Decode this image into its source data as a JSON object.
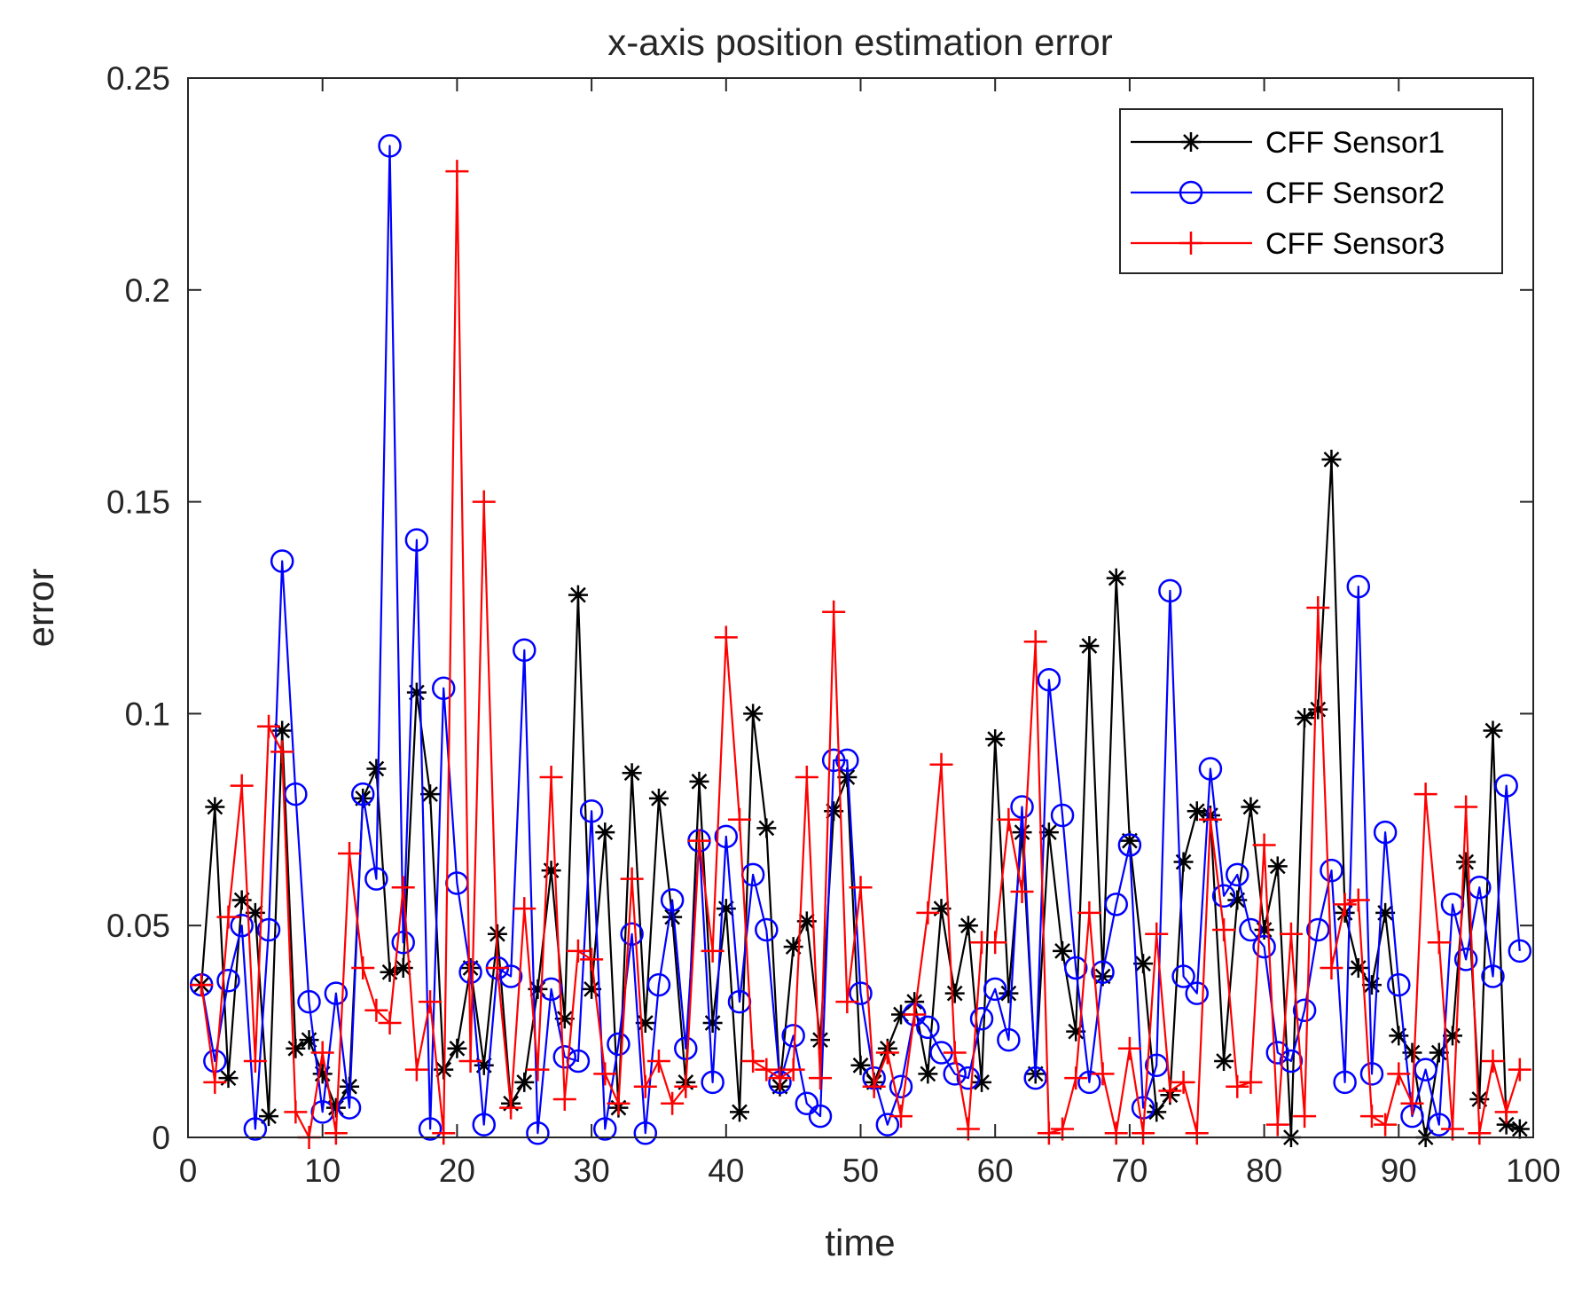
{
  "chart_data": {
    "type": "line",
    "title": "x-axis position estimation error",
    "xlabel": "time",
    "ylabel": "error",
    "xlim": [
      0,
      100
    ],
    "ylim": [
      0,
      0.25
    ],
    "xticks": [
      0,
      10,
      20,
      30,
      40,
      50,
      60,
      70,
      80,
      90,
      100
    ],
    "xtick_labels": [
      "0",
      "10",
      "20",
      "30",
      "40",
      "50",
      "60",
      "70",
      "80",
      "90",
      "100"
    ],
    "yticks": [
      0,
      0.05,
      0.1,
      0.15,
      0.2,
      0.25
    ],
    "ytick_labels": [
      "0",
      "0.05",
      "0.1",
      "0.15",
      "0.2",
      "0.25"
    ],
    "grid": false,
    "legend_position": "top-right",
    "x": [
      1,
      2,
      3,
      4,
      5,
      6,
      7,
      8,
      9,
      10,
      11,
      12,
      13,
      14,
      15,
      16,
      17,
      18,
      19,
      20,
      21,
      22,
      23,
      24,
      25,
      26,
      27,
      28,
      29,
      30,
      31,
      32,
      33,
      34,
      35,
      36,
      37,
      38,
      39,
      40,
      41,
      42,
      43,
      44,
      45,
      46,
      47,
      48,
      49,
      50,
      51,
      52,
      53,
      54,
      55,
      56,
      57,
      58,
      59,
      60,
      61,
      62,
      63,
      64,
      65,
      66,
      67,
      68,
      69,
      70,
      71,
      72,
      73,
      74,
      75,
      76,
      77,
      78,
      79,
      80,
      81,
      82,
      83,
      84,
      85,
      86,
      87,
      88,
      89,
      90,
      91,
      92,
      93,
      94,
      95,
      96,
      97,
      98,
      99
    ],
    "series": [
      {
        "name": "CFF Sensor1",
        "color": "#000000",
        "marker": "asterisk",
        "values": [
          0.036,
          0.078,
          0.014,
          0.056,
          0.053,
          0.005,
          0.096,
          0.021,
          0.023,
          0.015,
          0.007,
          0.012,
          0.08,
          0.087,
          0.039,
          0.04,
          0.105,
          0.081,
          0.016,
          0.021,
          0.04,
          0.017,
          0.048,
          0.008,
          0.013,
          0.035,
          0.063,
          0.028,
          0.128,
          0.035,
          0.072,
          0.007,
          0.086,
          0.027,
          0.08,
          0.052,
          0.013,
          0.084,
          0.027,
          0.054,
          0.006,
          0.1,
          0.073,
          0.012,
          0.045,
          0.051,
          0.023,
          0.077,
          0.085,
          0.017,
          0.013,
          0.021,
          0.029,
          0.032,
          0.015,
          0.054,
          0.034,
          0.05,
          0.013,
          0.094,
          0.034,
          0.072,
          0.015,
          0.072,
          0.044,
          0.025,
          0.116,
          0.038,
          0.132,
          0.07,
          0.041,
          0.006,
          0.01,
          0.065,
          0.077,
          0.076,
          0.018,
          0.056,
          0.078,
          0.049,
          0.064,
          0.0,
          0.099,
          0.101,
          0.16,
          0.053,
          0.04,
          0.036,
          0.053,
          0.024,
          0.02,
          0.0,
          0.02,
          0.024,
          0.065,
          0.009,
          0.096,
          0.003,
          0.002
        ]
      },
      {
        "name": "CFF Sensor2",
        "color": "#0000FF",
        "marker": "circle",
        "values": [
          0.036,
          0.018,
          0.037,
          0.05,
          0.002,
          0.049,
          0.136,
          0.081,
          0.032,
          0.006,
          0.034,
          0.007,
          0.081,
          0.061,
          0.234,
          0.046,
          0.141,
          0.002,
          0.106,
          0.06,
          0.039,
          0.003,
          0.04,
          0.038,
          0.115,
          0.001,
          0.035,
          0.019,
          0.018,
          0.077,
          0.002,
          0.022,
          0.048,
          0.001,
          0.036,
          0.056,
          0.021,
          0.07,
          0.013,
          0.071,
          0.032,
          0.062,
          0.049,
          0.013,
          0.024,
          0.008,
          0.005,
          0.089,
          0.089,
          0.034,
          0.014,
          0.003,
          0.012,
          0.029,
          0.026,
          0.02,
          0.015,
          0.014,
          0.028,
          0.035,
          0.023,
          0.078,
          0.014,
          0.108,
          0.076,
          0.04,
          0.013,
          0.039,
          0.055,
          0.069,
          0.007,
          0.017,
          0.129,
          0.038,
          0.034,
          0.087,
          0.057,
          0.062,
          0.049,
          0.045,
          0.02,
          0.018,
          0.03,
          0.049,
          0.063,
          0.013,
          0.13,
          0.015,
          0.072,
          0.036,
          0.005,
          0.016,
          0.003,
          0.055,
          0.042,
          0.059,
          0.038,
          0.083,
          0.044
        ]
      },
      {
        "name": "CFF Sensor3",
        "color": "#FF0000",
        "marker": "plus",
        "values": [
          0.036,
          0.013,
          0.052,
          0.083,
          0.018,
          0.097,
          0.091,
          0.006,
          0.0,
          0.02,
          0.001,
          0.067,
          0.04,
          0.03,
          0.027,
          0.059,
          0.016,
          0.032,
          0.001,
          0.228,
          0.018,
          0.15,
          0.04,
          0.007,
          0.054,
          0.016,
          0.085,
          0.009,
          0.044,
          0.042,
          0.015,
          0.008,
          0.061,
          0.012,
          0.018,
          0.008,
          0.012,
          0.07,
          0.044,
          0.118,
          0.075,
          0.018,
          0.016,
          0.014,
          0.016,
          0.085,
          0.014,
          0.124,
          0.032,
          0.059,
          0.012,
          0.02,
          0.005,
          0.029,
          0.053,
          0.088,
          0.02,
          0.002,
          0.046,
          0.046,
          0.075,
          0.058,
          0.117,
          0.001,
          0.002,
          0.014,
          0.053,
          0.015,
          0.001,
          0.021,
          0.001,
          0.048,
          0.011,
          0.013,
          0.001,
          0.075,
          0.049,
          0.012,
          0.013,
          0.069,
          0.003,
          0.048,
          0.005,
          0.125,
          0.04,
          0.055,
          0.056,
          0.005,
          0.003,
          0.015,
          0.008,
          0.081,
          0.046,
          0.002,
          0.078,
          0.001,
          0.018,
          0.006,
          0.016
        ]
      }
    ]
  }
}
